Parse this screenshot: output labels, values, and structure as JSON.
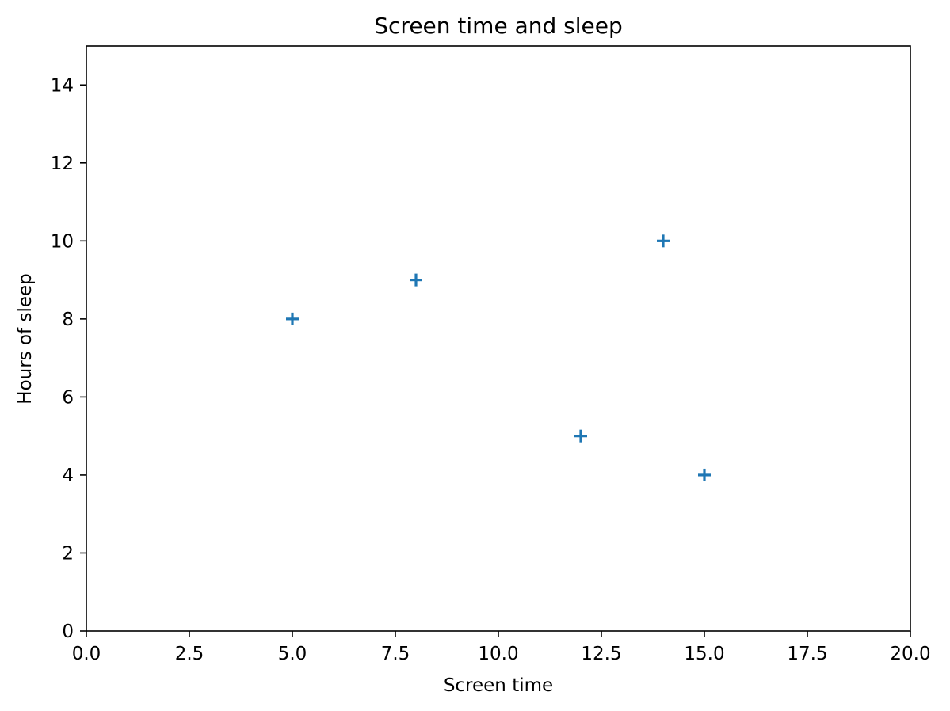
{
  "chart_data": {
    "type": "scatter",
    "title": "Screen time and sleep",
    "xlabel": "Screen time",
    "ylabel": "Hours of sleep",
    "xlim": [
      0,
      20
    ],
    "ylim": [
      0,
      15
    ],
    "xticks": [
      0,
      2.5,
      5,
      7.5,
      10,
      12.5,
      15,
      17.5,
      20
    ],
    "xtick_labels": [
      "0.0",
      "2.5",
      "5.0",
      "7.5",
      "10.0",
      "12.5",
      "15.0",
      "17.5",
      "20.0"
    ],
    "yticks": [
      0,
      2,
      4,
      6,
      8,
      10,
      12,
      14
    ],
    "ytick_labels": [
      "0",
      "2",
      "4",
      "6",
      "8",
      "10",
      "12",
      "14"
    ],
    "grid": false,
    "marker": "+",
    "series": [
      {
        "color": "#1f77b4",
        "x": [
          5,
          8,
          12,
          14,
          15
        ],
        "y": [
          8,
          9,
          5,
          10,
          4
        ]
      }
    ]
  }
}
